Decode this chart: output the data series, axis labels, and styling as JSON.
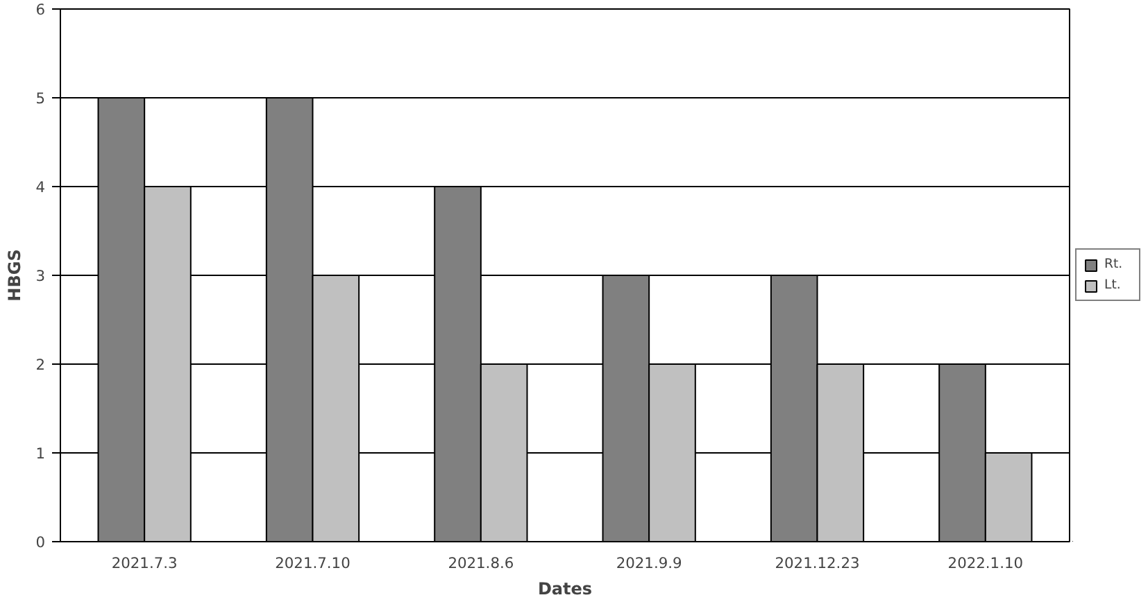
{
  "chart_data": {
    "type": "bar",
    "xlabel": "Dates",
    "ylabel": "HBGS",
    "categories": [
      "2021.7.3",
      "2021.7.10",
      "2021.8.6",
      "2021.9.9",
      "2021.12.23",
      "2022.1.10"
    ],
    "series": [
      {
        "name": "Rt.",
        "color": "#808080",
        "values": [
          5,
          5,
          4,
          3,
          3,
          2
        ]
      },
      {
        "name": "Lt.",
        "color": "#c0c0c0",
        "values": [
          4,
          3,
          2,
          2,
          2,
          1
        ]
      }
    ],
    "ylim": [
      0,
      6
    ],
    "yticks": [
      0,
      1,
      2,
      3,
      4,
      5,
      6
    ],
    "grid": "y",
    "legend": "right"
  }
}
